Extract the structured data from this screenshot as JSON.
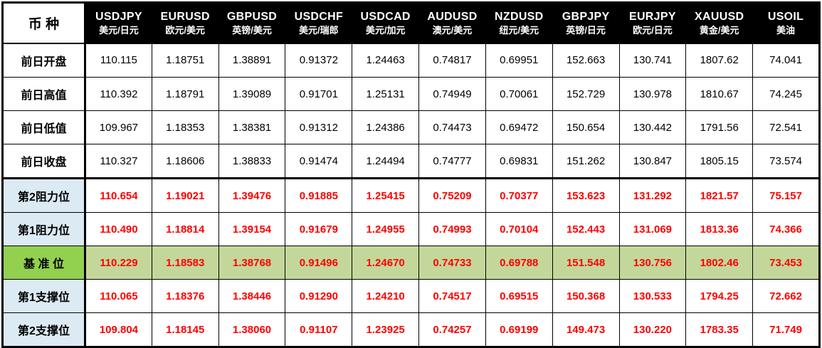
{
  "table": {
    "corner_label": "币 种",
    "columns": [
      {
        "symbol": "USDJPY",
        "name_cn": "美元/日元"
      },
      {
        "symbol": "EURUSD",
        "name_cn": "欧元/美元"
      },
      {
        "symbol": "GBPUSD",
        "name_cn": "英镑/美元"
      },
      {
        "symbol": "USDCHF",
        "name_cn": "美元/瑞郎"
      },
      {
        "symbol": "USDCAD",
        "name_cn": "美元/加元"
      },
      {
        "symbol": "AUDUSD",
        "name_cn": "澳元/美元"
      },
      {
        "symbol": "NZDUSD",
        "name_cn": "纽元/美元"
      },
      {
        "symbol": "GBPJPY",
        "name_cn": "英镑/日元"
      },
      {
        "symbol": "EURJPY",
        "name_cn": "欧元/日元"
      },
      {
        "symbol": "XAUUSD",
        "name_cn": "黄金/美元"
      },
      {
        "symbol": "USOIL",
        "name_cn": "美油"
      }
    ],
    "rows": [
      {
        "label": "前日开盘",
        "type": "prev",
        "values": [
          "110.115",
          "1.18751",
          "1.38891",
          "0.91372",
          "1.24463",
          "0.74817",
          "0.69951",
          "152.663",
          "130.741",
          "1807.62",
          "74.041"
        ]
      },
      {
        "label": "前日高值",
        "type": "prev",
        "values": [
          "110.392",
          "1.18791",
          "1.39089",
          "0.91701",
          "1.25131",
          "0.74949",
          "0.70061",
          "152.729",
          "130.978",
          "1810.67",
          "74.245"
        ]
      },
      {
        "label": "前日低值",
        "type": "prev",
        "values": [
          "109.967",
          "1.18353",
          "1.38381",
          "0.91312",
          "1.24386",
          "0.74473",
          "0.69472",
          "150.654",
          "130.442",
          "1791.56",
          "72.541"
        ]
      },
      {
        "label": "前日收盘",
        "type": "prev",
        "values": [
          "110.327",
          "1.18606",
          "1.38833",
          "0.91474",
          "1.24494",
          "0.74777",
          "0.69831",
          "151.262",
          "130.847",
          "1805.15",
          "73.574"
        ]
      },
      {
        "label": "第2阻力位",
        "type": "resistance",
        "values": [
          "110.654",
          "1.19021",
          "1.39476",
          "0.91885",
          "1.25415",
          "0.75209",
          "0.70377",
          "153.623",
          "131.292",
          "1821.57",
          "75.157"
        ]
      },
      {
        "label": "第1阻力位",
        "type": "resistance",
        "values": [
          "110.490",
          "1.18814",
          "1.39154",
          "0.91679",
          "1.24955",
          "0.74993",
          "0.70104",
          "152.443",
          "131.069",
          "1813.36",
          "74.366"
        ]
      },
      {
        "label": "基 准 位",
        "type": "pivot",
        "values": [
          "110.229",
          "1.18583",
          "1.38768",
          "0.91496",
          "1.24670",
          "0.74733",
          "0.69788",
          "151.548",
          "130.756",
          "1802.46",
          "73.453"
        ]
      },
      {
        "label": "第1支撑位",
        "type": "support",
        "values": [
          "110.065",
          "1.18376",
          "1.38446",
          "0.91290",
          "1.24210",
          "0.74517",
          "0.69515",
          "150.368",
          "130.533",
          "1794.25",
          "72.662"
        ]
      },
      {
        "label": "第2支撑位",
        "type": "support",
        "values": [
          "109.804",
          "1.18145",
          "1.38060",
          "0.91107",
          "1.23925",
          "0.74257",
          "0.69199",
          "149.473",
          "130.220",
          "1783.35",
          "71.749"
        ]
      }
    ],
    "colors": {
      "header_bg": "#000000",
      "header_text": "#ffffff",
      "label_blue_bg": "#dbeaf3",
      "pivot_label_bg": "#92d050",
      "pivot_row_bg": "#c4d79b",
      "value_red": "#ff0000",
      "border": "#000000"
    }
  }
}
